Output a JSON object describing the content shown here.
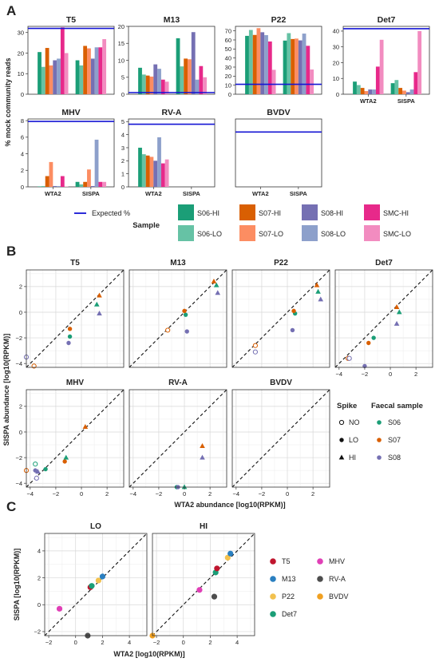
{
  "panel_letters": [
    "A",
    "B",
    "C"
  ],
  "colors": {
    "S06-HI": "#1b9e77",
    "S06-LO": "#66c2a5",
    "S07-HI": "#d95f02",
    "S07-LO": "#fc8d62",
    "S08-HI": "#7570b3",
    "S08-LO": "#8da0cb",
    "SMC-HI": "#e7298a",
    "SMC-LO": "#f28cc0",
    "expected_line": "#1515d4",
    "S06": "#1b9e77",
    "S07": "#d95f02",
    "S08": "#7570b3",
    "T5": "#c0152e",
    "M13": "#2a7fc0",
    "P22": "#f2c14e",
    "Det7": "#1b9e77",
    "MHV": "#e03fb6",
    "RV-A": "#4d4d4d",
    "BVDV": "#f0a020"
  },
  "legend_A": {
    "expected_label": "Expected %",
    "title": "Sample",
    "items": [
      "S06-HI",
      "S07-HI",
      "S08-HI",
      "SMC-HI",
      "S06-LO",
      "S07-LO",
      "S08-LO",
      "SMC-LO"
    ]
  },
  "legend_B": {
    "spike_title": "Spike",
    "spike_items": [
      "NO",
      "LO",
      "HI"
    ],
    "faecal_title": "Faecal sample",
    "faecal_items": [
      "S06",
      "S07",
      "S08"
    ]
  },
  "legend_C": {
    "items": [
      "T5",
      "MHV",
      "M13",
      "RV-A",
      "P22",
      "BVDV",
      "Det7"
    ]
  },
  "chart_data": [
    {
      "panel": "A",
      "type": "bar",
      "ylabel": "% mock community reads",
      "categories": [
        "WTA2",
        "SISPA"
      ],
      "series_order": [
        "S06-HI",
        "S06-LO",
        "S07-HI",
        "S07-LO",
        "S08-HI",
        "S08-LO",
        "SMC-HI",
        "SMC-LO"
      ],
      "facets": [
        {
          "title": "T5",
          "ylim": [
            0,
            33
          ],
          "yticks": [
            0,
            10,
            20,
            30
          ],
          "expected": 32,
          "values": {
            "WTA2": [
              20.5,
              13.3,
              22.5,
              14.0,
              16.5,
              17.3,
              32.5,
              20.0
            ],
            "SISPA": [
              16.5,
              14.0,
              23.5,
              22.3,
              17.3,
              22.8,
              22.8,
              26.8
            ]
          }
        },
        {
          "title": "M13",
          "ylim": [
            0,
            20
          ],
          "yticks": [
            0,
            5,
            10,
            15,
            20
          ],
          "expected": 0.5,
          "values": {
            "WTA2": [
              7.8,
              5.8,
              5.5,
              5.2,
              8.8,
              7.5,
              4.3,
              3.7
            ],
            "SISPA": [
              16.5,
              8.2,
              10.5,
              10.3,
              18.3,
              4.3,
              8.3,
              5.0
            ]
          }
        },
        {
          "title": "P22",
          "ylim": [
            0,
            75
          ],
          "yticks": [
            0,
            10,
            20,
            30,
            40,
            50,
            60,
            70
          ],
          "expected": 11,
          "values": {
            "WTA2": [
              64.5,
              71.0,
              65.5,
              73.0,
              68.5,
              65.3,
              58.3,
              27.0
            ],
            "SISPA": [
              59.3,
              67.5,
              61.0,
              61.5,
              59.5,
              67.0,
              53.5,
              27.3
            ]
          }
        },
        {
          "title": "Det7",
          "ylim": [
            0,
            43
          ],
          "yticks": [
            0,
            10,
            20,
            30,
            40
          ],
          "expected": 41.5,
          "values": {
            "WTA2": [
              8.0,
              5.8,
              4.0,
              2.0,
              3.0,
              3.0,
              17.5,
              34.5
            ],
            "SISPA": [
              7.0,
              9.0,
              4.0,
              2.3,
              1.3,
              3.0,
              14.0,
              40.0
            ]
          }
        },
        {
          "title": "MHV",
          "ylim": [
            0,
            8.2
          ],
          "yticks": [
            0,
            2,
            4,
            6,
            8
          ],
          "expected": 7.9,
          "values": {
            "WTA2": [
              0.05,
              0.1,
              1.3,
              3.0,
              0.1,
              0.1,
              1.3,
              0.05
            ],
            "SISPA": [
              0.6,
              0.3,
              0.6,
              2.1,
              0.1,
              5.7,
              0.6,
              0.6
            ]
          }
        },
        {
          "title": "RV-A",
          "ylim": [
            0,
            5.2
          ],
          "yticks": [
            0,
            1,
            2,
            3,
            4,
            5
          ],
          "expected": 4.8,
          "values": {
            "WTA2": [
              3.0,
              2.5,
              2.4,
              2.3,
              2.0,
              3.8,
              1.8,
              2.1
            ],
            "SISPA": [
              0,
              0,
              0,
              0,
              0,
              0,
              0,
              0
            ]
          }
        },
        {
          "title": "BVDV",
          "ylim": [
            0,
            1.3
          ],
          "yticks": [],
          "expected": 1.05,
          "values": {
            "WTA2": [
              0,
              0,
              0,
              0,
              0,
              0,
              0,
              0
            ],
            "SISPA": [
              0,
              0,
              0,
              0,
              0,
              0,
              0,
              0
            ]
          }
        }
      ]
    },
    {
      "panel": "B",
      "type": "scatter",
      "xlabel": "WTA2 abundance [log10(RPKM)]",
      "ylabel": "SISPA abundance [log10(RPKM)]",
      "xlim": [
        -4.3,
        3.3
      ],
      "ylim": [
        -4.3,
        3.3
      ],
      "ticks": [
        -4,
        -2,
        0,
        2
      ],
      "facets": [
        {
          "title": "T5",
          "points": [
            {
              "s": "S08",
              "k": "NO",
              "x": -4.3,
              "y": -3.5
            },
            {
              "s": "S07",
              "k": "NO",
              "x": -3.7,
              "y": -4.2
            },
            {
              "s": "S06",
              "k": "LO",
              "x": -0.9,
              "y": -1.9
            },
            {
              "s": "S07",
              "k": "LO",
              "x": -0.9,
              "y": -1.3
            },
            {
              "s": "S08",
              "k": "LO",
              "x": -1.0,
              "y": -2.4
            },
            {
              "s": "S06",
              "k": "HI",
              "x": 1.2,
              "y": 0.6
            },
            {
              "s": "S07",
              "k": "HI",
              "x": 1.4,
              "y": 1.3
            },
            {
              "s": "S08",
              "k": "HI",
              "x": 1.4,
              "y": -0.1
            }
          ]
        },
        {
          "title": "M13",
          "points": [
            {
              "s": "S07",
              "k": "NO",
              "x": -1.3,
              "y": -1.4
            },
            {
              "s": "S06",
              "k": "LO",
              "x": 0.1,
              "y": -0.2
            },
            {
              "s": "S07",
              "k": "LO",
              "x": 0.0,
              "y": 0.1
            },
            {
              "s": "S08",
              "k": "LO",
              "x": 0.2,
              "y": -1.5
            },
            {
              "s": "S06",
              "k": "HI",
              "x": 2.5,
              "y": 2.1
            },
            {
              "s": "S07",
              "k": "HI",
              "x": 2.3,
              "y": 2.4
            },
            {
              "s": "S08",
              "k": "HI",
              "x": 2.6,
              "y": 1.5
            }
          ]
        },
        {
          "title": "P22",
          "points": [
            {
              "s": "S07",
              "k": "NO",
              "x": -2.5,
              "y": -2.6
            },
            {
              "s": "S08",
              "k": "NO",
              "x": -2.5,
              "y": -3.1
            },
            {
              "s": "S06",
              "k": "LO",
              "x": 0.6,
              "y": -0.1
            },
            {
              "s": "S07",
              "k": "LO",
              "x": 0.5,
              "y": 0.1
            },
            {
              "s": "S08",
              "k": "LO",
              "x": 0.4,
              "y": -1.4
            },
            {
              "s": "S06",
              "k": "HI",
              "x": 2.4,
              "y": 1.6
            },
            {
              "s": "S07",
              "k": "HI",
              "x": 2.3,
              "y": 2.1
            },
            {
              "s": "S08",
              "k": "HI",
              "x": 2.6,
              "y": 1.0
            }
          ]
        },
        {
          "title": "Det7",
          "points": [
            {
              "s": "S07",
              "k": "NO",
              "x": -3.3,
              "y": -3.6
            },
            {
              "s": "S08",
              "k": "NO",
              "x": -3.2,
              "y": -3.6
            },
            {
              "s": "S06",
              "k": "LO",
              "x": -1.3,
              "y": -2.0
            },
            {
              "s": "S07",
              "k": "LO",
              "x": -1.7,
              "y": -2.4
            },
            {
              "s": "S08",
              "k": "LO",
              "x": -2.0,
              "y": -4.2
            },
            {
              "s": "S06",
              "k": "HI",
              "x": 0.7,
              "y": 0.0
            },
            {
              "s": "S07",
              "k": "HI",
              "x": 0.5,
              "y": 0.4
            },
            {
              "s": "S08",
              "k": "HI",
              "x": 0.5,
              "y": -0.9
            }
          ]
        },
        {
          "title": "MHV",
          "points": [
            {
              "s": "S06",
              "k": "NO",
              "x": -3.6,
              "y": -2.5
            },
            {
              "s": "S08",
              "k": "NO",
              "x": -3.5,
              "y": -3.6
            },
            {
              "s": "S07",
              "k": "NO",
              "x": -4.3,
              "y": -3.0
            },
            {
              "s": "S06",
              "k": "LO",
              "x": -2.8,
              "y": -2.9
            },
            {
              "s": "S07",
              "k": "LO",
              "x": -1.3,
              "y": -2.3
            },
            {
              "s": "S08",
              "k": "LO",
              "x": -3.6,
              "y": -3.0
            },
            {
              "s": "S06",
              "k": "HI",
              "x": -1.2,
              "y": -2.0
            },
            {
              "s": "S07",
              "k": "HI",
              "x": 0.3,
              "y": 0.4
            },
            {
              "s": "S08",
              "k": "HI",
              "x": -3.4,
              "y": -3.1
            }
          ]
        },
        {
          "title": "RV-A",
          "points": [
            {
              "s": "S06",
              "k": "LO",
              "x": -0.6,
              "y": -4.3
            },
            {
              "s": "S08",
              "k": "LO",
              "x": -0.5,
              "y": -4.3
            },
            {
              "s": "S06",
              "k": "HI",
              "x": 0.0,
              "y": -4.3
            },
            {
              "s": "S07",
              "k": "HI",
              "x": 1.4,
              "y": -1.1
            },
            {
              "s": "S08",
              "k": "HI",
              "x": 1.4,
              "y": -2.0
            }
          ]
        },
        {
          "title": "BVDV",
          "points": []
        }
      ]
    },
    {
      "panel": "C",
      "type": "scatter",
      "xlabel": "WTA2 [log10(RPKM)]",
      "ylabel": "SISPA [log10(RPKM)]",
      "xlim": [
        -2.3,
        5.3
      ],
      "ylim": [
        -2.3,
        5.3
      ],
      "ticks": [
        -2,
        0,
        2,
        4
      ],
      "facets": [
        {
          "title": "LO",
          "points": [
            {
              "v": "MHV",
              "x": -1.2,
              "y": -0.3
            },
            {
              "v": "RV-A",
              "x": 0.9,
              "y": -2.3
            },
            {
              "v": "T5",
              "x": 1.1,
              "y": 1.3
            },
            {
              "v": "Det7",
              "x": 1.2,
              "y": 1.4
            },
            {
              "v": "P22",
              "x": 1.7,
              "y": 1.8
            },
            {
              "v": "M13",
              "x": 2.0,
              "y": 2.1
            }
          ]
        },
        {
          "title": "HI",
          "points": [
            {
              "v": "BVDV",
              "x": -2.3,
              "y": -2.3
            },
            {
              "v": "MHV",
              "x": 1.2,
              "y": 1.1
            },
            {
              "v": "RV-A",
              "x": 2.3,
              "y": 0.6
            },
            {
              "v": "Det7",
              "x": 2.4,
              "y": 2.4
            },
            {
              "v": "T5",
              "x": 2.5,
              "y": 2.7
            },
            {
              "v": "P22",
              "x": 3.3,
              "y": 3.5
            },
            {
              "v": "M13",
              "x": 3.5,
              "y": 3.8
            }
          ]
        }
      ]
    }
  ]
}
